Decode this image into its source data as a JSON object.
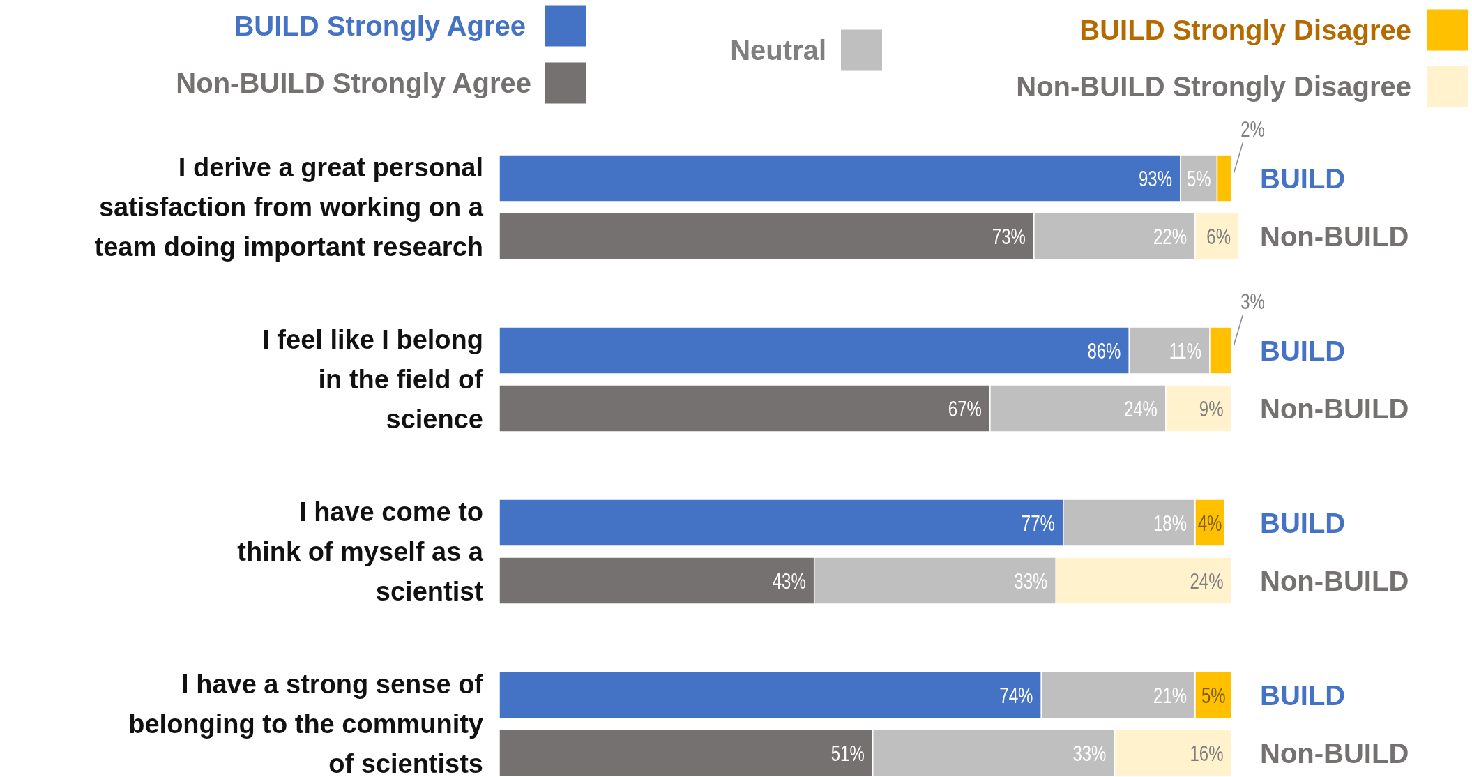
{
  "chart_data": {
    "type": "bar",
    "orientation": "horizontal",
    "stacked": true,
    "legend": "top",
    "categories": [
      "BUILD",
      "Non-BUILD",
      "BUILD",
      "Non-BUILD",
      "BUILD",
      "Non-BUILD",
      "BUILD",
      "Non-BUILD"
    ],
    "series": [
      {
        "name": "BUILD Strongly Agree",
        "color": "#4472c4",
        "values": [
          93,
          null,
          86,
          null,
          77,
          null,
          74,
          null
        ],
        "value_labels": [
          "93%",
          null,
          "86%",
          null,
          "77%",
          null,
          "74%",
          null
        ]
      },
      {
        "name": "Non-BUILD Strongly Agree",
        "color": "#767171",
        "values": [
          null,
          73,
          null,
          67,
          null,
          43,
          null,
          51
        ],
        "value_labels": [
          null,
          "73%",
          null,
          "67%",
          null,
          "43%",
          null,
          "51%"
        ]
      },
      {
        "name": "Neutral",
        "color": "#bfbfbf",
        "values": [
          5,
          22,
          11,
          24,
          18,
          33,
          21,
          33
        ],
        "value_labels": [
          "5%",
          "22%",
          "11%",
          "24%",
          "18%",
          "33%",
          "21%",
          "33%"
        ]
      },
      {
        "name": "BUILD Strongly Disagree",
        "color": "#ffc000",
        "values": [
          2,
          null,
          3,
          null,
          4,
          null,
          5,
          null
        ],
        "value_labels": [
          "2%",
          null,
          "3%",
          null,
          "4%",
          null,
          "5%",
          null
        ]
      },
      {
        "name": "Non-BUILD Strongly Disagree",
        "color": "#fff2cc",
        "values": [
          null,
          6,
          null,
          9,
          null,
          24,
          null,
          16
        ],
        "value_labels": [
          null,
          "6%",
          null,
          "9%",
          null,
          "24%",
          null,
          "16%"
        ]
      }
    ],
    "annotations": [
      "I derive a great personal\nsatisfaction from working on a\nteam doing important research",
      "I feel like I belong\nin the field of\nscience",
      "I have come to\nthink of myself as a\nscientist",
      "I have a strong sense of\nbelonging to the community\nof scientists"
    ]
  }
}
